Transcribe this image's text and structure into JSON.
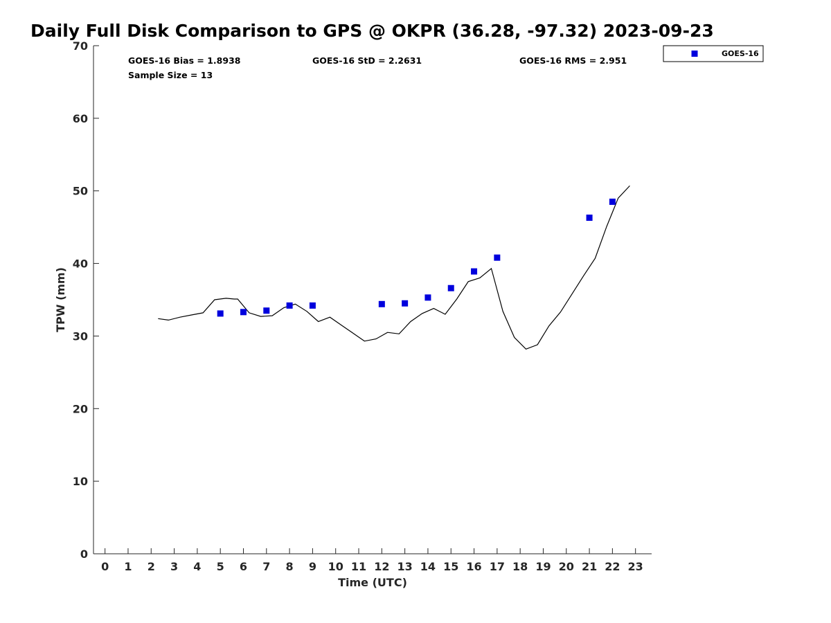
{
  "title": "Daily Full Disk Comparison to GPS @ OKPR (36.28, -97.32) 2023-09-23",
  "stats": {
    "bias": "GOES-16 Bias = 1.8938",
    "std": "GOES-16 StD = 2.2631",
    "rms": "GOES-16 RMS = 2.951",
    "sample": "Sample Size = 13"
  },
  "chart_data": {
    "type": "scatter",
    "xlabel": "Time (UTC)",
    "ylabel": "TPW (mm)",
    "xlim": [
      -0.5,
      23.7
    ],
    "ylim": [
      0,
      70
    ],
    "xticks": [
      0,
      1,
      2,
      3,
      4,
      5,
      6,
      7,
      8,
      9,
      10,
      11,
      12,
      13,
      14,
      15,
      16,
      17,
      18,
      19,
      20,
      21,
      22,
      23
    ],
    "yticks": [
      0,
      10,
      20,
      30,
      40,
      50,
      60,
      70
    ],
    "grid": false,
    "legend_position": "top-right",
    "series": [
      {
        "name": "GOES-16",
        "marker": "square",
        "color": "#0000dd",
        "x": [
          5,
          6,
          7,
          8,
          9,
          12,
          13,
          14,
          15,
          16,
          17,
          21,
          22
        ],
        "y": [
          33.1,
          33.3,
          33.5,
          34.2,
          34.2,
          34.4,
          34.5,
          35.3,
          36.6,
          38.9,
          40.8,
          46.3,
          48.5
        ]
      },
      {
        "marker": "line",
        "color": "#000000",
        "x": [
          2.3,
          2.75,
          3.25,
          3.75,
          4.25,
          4.75,
          5.25,
          5.6,
          5.75,
          6.25,
          6.75,
          7.25,
          7.75,
          8.25,
          8.75,
          9.25,
          9.75,
          10.25,
          10.75,
          11.25,
          11.75,
          12.25,
          12.75,
          13.25,
          13.75,
          14.25,
          14.75,
          15.25,
          15.75,
          16.25,
          16.75,
          17.25,
          17.75,
          18.25,
          18.75,
          19.25,
          19.75,
          20.25,
          20.75,
          21.25,
          21.75,
          22.25,
          22.75
        ],
        "y": [
          32.4,
          32.2,
          32.6,
          32.9,
          33.2,
          35.0,
          35.2,
          35.1,
          35.1,
          33.2,
          32.7,
          32.8,
          33.9,
          34.4,
          33.4,
          32.0,
          32.6,
          31.5,
          30.4,
          29.3,
          29.6,
          30.5,
          30.3,
          32.0,
          33.1,
          33.8,
          33.0,
          35.1,
          37.5,
          38.0,
          39.3,
          33.4,
          29.8,
          28.2,
          28.8,
          31.4,
          33.3,
          35.8,
          38.3,
          40.7,
          45.1,
          49.0,
          50.7
        ]
      }
    ]
  }
}
